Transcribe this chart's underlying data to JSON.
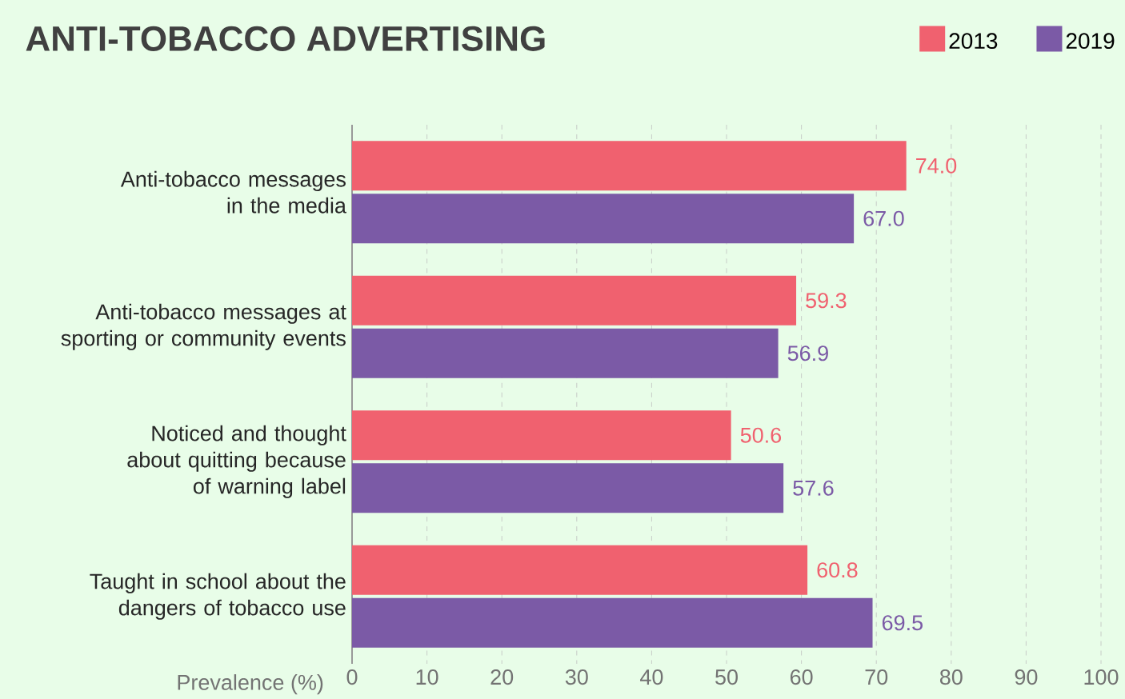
{
  "chart_data": {
    "type": "bar",
    "orientation": "horizontal",
    "title": "ANTI-TOBACCO ADVERTISING",
    "xlabel": "Prevalence (%)",
    "categories": [
      "Anti-tobacco messages in the media",
      "Anti-tobacco messages at sporting or community events",
      "Noticed and thought about quitting because of warning label",
      "Taught in school about the dangers of tobacco use"
    ],
    "series": [
      {
        "name": "2013",
        "color": "#f0616f",
        "values": [
          74.0,
          59.3,
          50.6,
          60.8
        ],
        "value_labels": [
          "74.0",
          "59.3",
          "50.6",
          "60.8"
        ]
      },
      {
        "name": "2019",
        "color": "#7b5aa6",
        "values": [
          67.0,
          56.9,
          57.6,
          69.5
        ],
        "value_labels": [
          "67.0",
          "56.9",
          "57.6",
          "69.5"
        ]
      }
    ],
    "xlim": [
      0,
      100
    ],
    "xticks": [
      0,
      10,
      20,
      30,
      40,
      50,
      60,
      70,
      80,
      90,
      100
    ],
    "grid": "x",
    "legend": "top right"
  }
}
